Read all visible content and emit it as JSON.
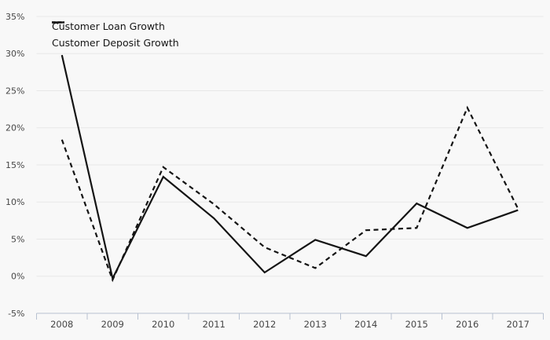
{
  "chart_data": {
    "type": "line",
    "x": [
      2008,
      2009,
      2010,
      2011,
      2012,
      2013,
      2014,
      2015,
      2016,
      2017
    ],
    "series": [
      {
        "id": "customer-loan-growth",
        "name": "Customer Loan Growth",
        "line_style": "solid",
        "values": [
          29.8,
          -0.3,
          13.4,
          7.8,
          0.5,
          4.9,
          2.7,
          9.8,
          6.5,
          8.9
        ]
      },
      {
        "id": "customer-deposit-growth",
        "name": "Customer Deposit Growth",
        "line_style": "dashed",
        "values": [
          18.4,
          -0.5,
          14.7,
          9.7,
          3.9,
          1.1,
          6.2,
          6.5,
          22.7,
          9.1
        ]
      }
    ],
    "title": "",
    "xlabel": "",
    "ylabel": "",
    "ylim": [
      -5,
      35
    ],
    "grid": "horizontal",
    "legend_position": "top-left",
    "y_ticks": {
      "values": [
        35,
        30,
        25,
        20,
        15,
        10,
        5,
        0,
        -5
      ],
      "labels": [
        "35%",
        "30%",
        "25%",
        "20%",
        "15%",
        "10%",
        "5%",
        "0%",
        "-5%"
      ]
    },
    "x_tick_labels": [
      "2008",
      "2009",
      "2010",
      "2011",
      "2012",
      "2013",
      "2014",
      "2015",
      "2016",
      "2017"
    ],
    "colors": {
      "line": "#141414",
      "grid": "#e7e7e7",
      "axis": "#b7c1d1",
      "tick_label": "#464646",
      "background": "#f8f8f8"
    }
  }
}
